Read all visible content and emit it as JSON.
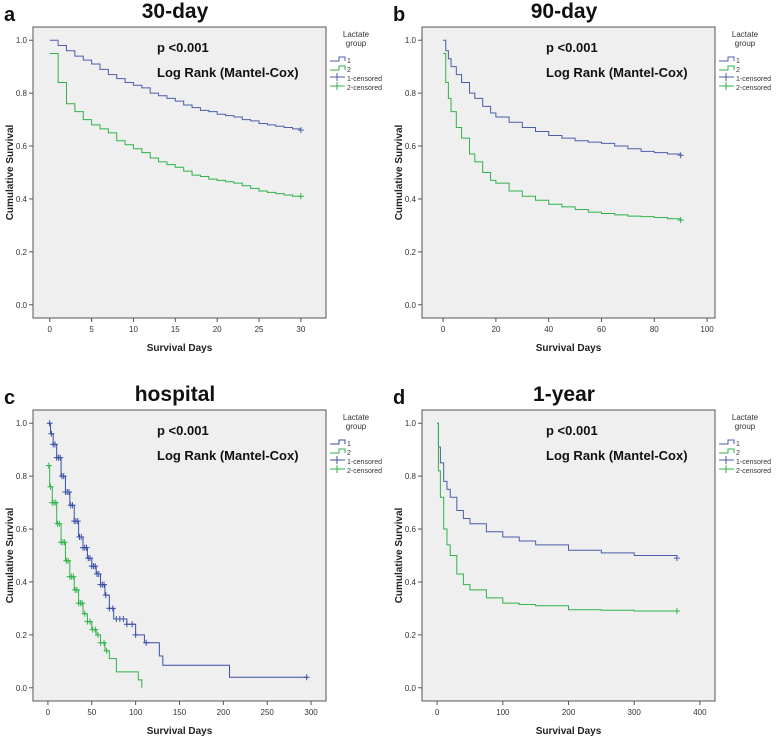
{
  "chart_data": [
    {
      "type": "line",
      "panel_label": "a",
      "title": "30-day",
      "xlabel": "Survival Days",
      "ylabel": "Cumulative Survival",
      "xlim": [
        -2,
        33
      ],
      "ylim": [
        -0.05,
        1.05
      ],
      "xticks": [
        0,
        5,
        10,
        15,
        20,
        25,
        30
      ],
      "yticks": [
        "0.0",
        "0.2",
        "0.4",
        "0.6",
        "0.8",
        "1.0"
      ],
      "annotation": [
        "p <0.001",
        "Log Rank (Mantel-Cox)"
      ],
      "legend": {
        "title": [
          "Lactate",
          "group"
        ],
        "entries": [
          "1",
          "2",
          "1-censored",
          "2-censored"
        ],
        "placement": "right"
      },
      "series": [
        {
          "name": "1",
          "color": "#4b5eab",
          "x": [
            0,
            1,
            2,
            3,
            4,
            5,
            6,
            7,
            8,
            9,
            10,
            11,
            12,
            13,
            14,
            15,
            16,
            17,
            18,
            19,
            20,
            21,
            22,
            23,
            24,
            25,
            26,
            27,
            28,
            29,
            30
          ],
          "y": [
            1,
            0.98,
            0.96,
            0.94,
            0.925,
            0.91,
            0.89,
            0.87,
            0.855,
            0.84,
            0.83,
            0.82,
            0.8,
            0.79,
            0.78,
            0.77,
            0.755,
            0.745,
            0.735,
            0.73,
            0.72,
            0.715,
            0.71,
            0.7,
            0.695,
            0.685,
            0.68,
            0.675,
            0.67,
            0.665,
            0.66
          ],
          "censored": [
            30
          ]
        },
        {
          "name": "2",
          "color": "#2fb34a",
          "x": [
            0,
            1,
            2,
            3,
            4,
            5,
            6,
            7,
            8,
            9,
            10,
            11,
            12,
            13,
            14,
            15,
            16,
            17,
            18,
            19,
            20,
            21,
            22,
            23,
            24,
            25,
            26,
            27,
            28,
            29,
            30
          ],
          "y": [
            0.95,
            0.84,
            0.76,
            0.73,
            0.7,
            0.68,
            0.665,
            0.65,
            0.62,
            0.605,
            0.59,
            0.575,
            0.555,
            0.54,
            0.53,
            0.52,
            0.505,
            0.49,
            0.485,
            0.475,
            0.47,
            0.465,
            0.46,
            0.45,
            0.44,
            0.43,
            0.425,
            0.42,
            0.415,
            0.41,
            0.41
          ],
          "censored": [
            30
          ]
        }
      ]
    },
    {
      "type": "line",
      "panel_label": "b",
      "title": "90-day",
      "xlabel": "Survival Days",
      "ylabel": "Cumulative Survival",
      "xlim": [
        -8,
        103
      ],
      "ylim": [
        -0.05,
        1.05
      ],
      "xticks": [
        0,
        20,
        40,
        60,
        80,
        100
      ],
      "yticks": [
        "0.0",
        "0.2",
        "0.4",
        "0.6",
        "0.8",
        "1.0"
      ],
      "annotation": [
        "p <0.001",
        "Log Rank (Mantel-Cox)"
      ],
      "legend": {
        "title": [
          "Lactate",
          "group"
        ],
        "entries": [
          "1",
          "2",
          "1-censored",
          "2-censored"
        ],
        "placement": "right"
      },
      "series": [
        {
          "name": "1",
          "color": "#4b5eab",
          "x": [
            0,
            1,
            2,
            3,
            5,
            7,
            10,
            12,
            15,
            18,
            20,
            25,
            30,
            35,
            40,
            45,
            50,
            55,
            60,
            65,
            70,
            75,
            80,
            85,
            90
          ],
          "y": [
            1,
            0.96,
            0.93,
            0.9,
            0.87,
            0.84,
            0.8,
            0.78,
            0.75,
            0.725,
            0.71,
            0.69,
            0.67,
            0.655,
            0.64,
            0.63,
            0.62,
            0.615,
            0.61,
            0.6,
            0.59,
            0.58,
            0.575,
            0.57,
            0.565
          ],
          "censored": [
            90
          ]
        },
        {
          "name": "2",
          "color": "#2fb34a",
          "x": [
            0,
            1,
            2,
            3,
            5,
            7,
            10,
            12,
            15,
            18,
            20,
            25,
            30,
            35,
            40,
            45,
            50,
            55,
            60,
            65,
            70,
            75,
            80,
            85,
            90
          ],
          "y": [
            0.95,
            0.84,
            0.78,
            0.73,
            0.67,
            0.63,
            0.57,
            0.54,
            0.5,
            0.47,
            0.46,
            0.43,
            0.41,
            0.395,
            0.38,
            0.37,
            0.36,
            0.35,
            0.345,
            0.34,
            0.335,
            0.333,
            0.33,
            0.325,
            0.32
          ],
          "censored": [
            90
          ]
        }
      ]
    },
    {
      "type": "line",
      "panel_label": "c",
      "title": "hospital",
      "xlabel": "Survival Days",
      "ylabel": "Cumulative Survival",
      "xlim": [
        -17,
        317
      ],
      "ylim": [
        -0.05,
        1.05
      ],
      "xticks": [
        0,
        50,
        100,
        150,
        200,
        250,
        300
      ],
      "yticks": [
        "0.0",
        "0.2",
        "0.4",
        "0.6",
        "0.8",
        "1.0"
      ],
      "annotation": [
        "p <0.001",
        "Log Rank (Mantel-Cox)"
      ],
      "legend": {
        "title": [
          "Lactate",
          "group"
        ],
        "entries": [
          "1",
          "2",
          "1-censored",
          "2-censored"
        ],
        "placement": "right"
      },
      "series": [
        {
          "name": "1",
          "color": "#3a4fa6",
          "x": [
            0,
            3,
            6,
            10,
            15,
            20,
            25,
            30,
            35,
            40,
            45,
            50,
            55,
            60,
            65,
            70,
            75,
            90,
            100,
            110,
            127,
            131,
            207,
            295
          ],
          "y": [
            1,
            0.96,
            0.92,
            0.87,
            0.8,
            0.74,
            0.69,
            0.63,
            0.57,
            0.53,
            0.49,
            0.46,
            0.43,
            0.39,
            0.35,
            0.3,
            0.26,
            0.24,
            0.2,
            0.17,
            0.12,
            0.085,
            0.04,
            0.04
          ],
          "censored": [
            2,
            4,
            6,
            8,
            10,
            12,
            14,
            16,
            18,
            20,
            22,
            24,
            26,
            28,
            30,
            32,
            34,
            36,
            38,
            40,
            42,
            44,
            46,
            48,
            50,
            52,
            54,
            56,
            58,
            60,
            62,
            64,
            66,
            70,
            74,
            78,
            82,
            86,
            90,
            96,
            100,
            112,
            295
          ]
        },
        {
          "name": "2",
          "color": "#2fb34a",
          "x": [
            0,
            2,
            5,
            10,
            15,
            20,
            25,
            30,
            35,
            40,
            45,
            50,
            55,
            60,
            65,
            70,
            78,
            103,
            107
          ],
          "y": [
            0.84,
            0.76,
            0.7,
            0.62,
            0.55,
            0.48,
            0.42,
            0.37,
            0.32,
            0.28,
            0.25,
            0.22,
            0.2,
            0.17,
            0.14,
            0.11,
            0.06,
            0.03,
            0.0
          ],
          "censored": [
            1,
            3,
            5,
            7,
            9,
            11,
            13,
            15,
            17,
            19,
            21,
            23,
            25,
            27,
            29,
            31,
            33,
            35,
            37,
            39,
            42,
            45,
            48,
            51,
            54,
            57,
            60,
            64,
            67
          ]
        }
      ]
    },
    {
      "type": "line",
      "panel_label": "d",
      "title": "1-year",
      "xlabel": "Survival Days",
      "ylabel": "Cumulative Survival",
      "xlim": [
        -23,
        423
      ],
      "ylim": [
        -0.05,
        1.05
      ],
      "xticks": [
        0,
        100,
        200,
        300,
        400
      ],
      "yticks": [
        "0.0",
        "0.2",
        "0.4",
        "0.6",
        "0.8",
        "1.0"
      ],
      "annotation": [
        "p <0.001",
        "Log Rank (Mantel-Cox)"
      ],
      "legend": {
        "title": [
          "Lactate",
          "group"
        ],
        "entries": [
          "1",
          "2",
          "1-censored",
          "2-censored"
        ],
        "placement": "right"
      },
      "series": [
        {
          "name": "1",
          "color": "#4b5eab",
          "x": [
            0,
            2,
            5,
            10,
            15,
            20,
            30,
            40,
            50,
            75,
            100,
            125,
            150,
            200,
            250,
            300,
            365
          ],
          "y": [
            1,
            0.91,
            0.85,
            0.78,
            0.75,
            0.72,
            0.67,
            0.64,
            0.62,
            0.59,
            0.57,
            0.555,
            0.54,
            0.52,
            0.51,
            0.5,
            0.49
          ],
          "censored": [
            365
          ]
        },
        {
          "name": "2",
          "color": "#2fb34a",
          "x": [
            0,
            2,
            5,
            10,
            15,
            20,
            30,
            40,
            50,
            75,
            100,
            125,
            150,
            200,
            250,
            300,
            365
          ],
          "y": [
            1,
            0.82,
            0.72,
            0.6,
            0.54,
            0.5,
            0.43,
            0.39,
            0.37,
            0.34,
            0.32,
            0.315,
            0.31,
            0.295,
            0.293,
            0.29,
            0.29
          ],
          "censored": [
            365
          ]
        }
      ]
    }
  ]
}
